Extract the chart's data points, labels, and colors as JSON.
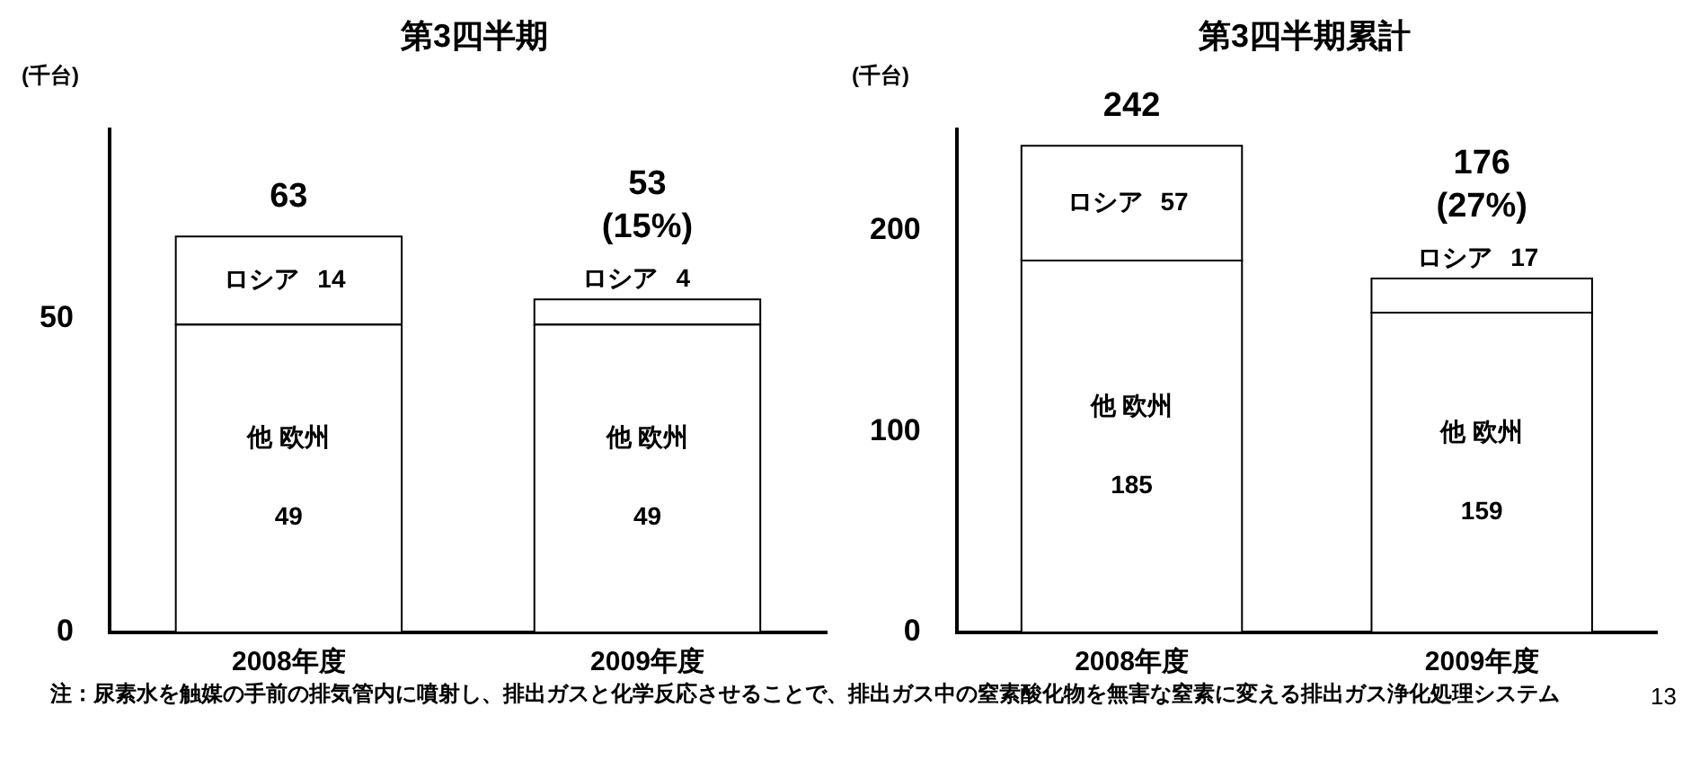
{
  "chart_data": [
    {
      "type": "bar",
      "title": "第3四半期",
      "ylabel": "(千台)",
      "categories": [
        "2008年度",
        "2009年度"
      ],
      "stacked": true,
      "data_labels": true,
      "legend": false,
      "grid": false,
      "ylim": [
        0,
        80
      ],
      "yticks": [
        0,
        50
      ],
      "series": [
        {
          "name": "他 欧州",
          "color": "#ffffff",
          "values": [
            49,
            49
          ]
        },
        {
          "name": "ロシア",
          "color": "#ffffff",
          "values": [
            14,
            4
          ]
        }
      ],
      "totals": [
        "63",
        "53\n(15%)"
      ],
      "annotations": [
        "注：尿素水を触媒の手前の排気管内に噴射し、排出ガスと化学反応させることで、排出ガス中の窒素酸化物を無害な窒素に変える排出ガス浄化処理システム"
      ]
    },
    {
      "type": "bar",
      "title": "第3四半期累計",
      "ylabel": "(千台)",
      "categories": [
        "2008年度",
        "2009年度"
      ],
      "stacked": true,
      "data_labels": true,
      "legend": false,
      "grid": false,
      "ylim": [
        0,
        250
      ],
      "yticks": [
        0,
        100,
        200
      ],
      "series": [
        {
          "name": "他 欧州",
          "color": "#ffffff",
          "values": [
            185,
            159
          ]
        },
        {
          "name": "ロシア",
          "color": "#ffffff",
          "values": [
            57,
            17
          ]
        }
      ],
      "totals": [
        "242",
        "176\n(27%)"
      ],
      "annotations": [
        "13"
      ]
    }
  ]
}
